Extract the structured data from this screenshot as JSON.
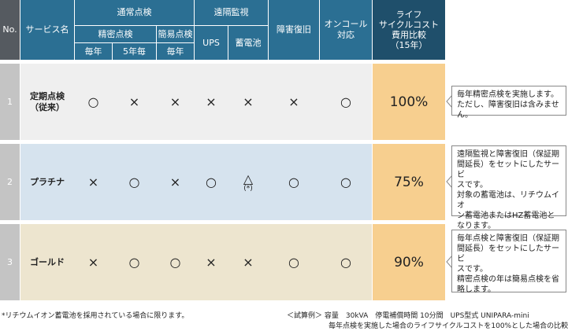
{
  "headers": {
    "no": "No.",
    "service": "サービス名",
    "regular": "通常点検",
    "detailed": "精密点検",
    "simple": "簡易点検",
    "remote": "遠隔監視",
    "recovery": "障害復旧",
    "oncall_1": "オンコール",
    "oncall_2": "対応",
    "cost_1": "ライフ",
    "cost_2": "サイクルコスト",
    "cost_3": "費用比較",
    "cost_4": "（15年）",
    "yearly_a": "毎年",
    "five_year": "5年毎",
    "yearly_b": "毎年",
    "ups": "UPS",
    "battery": "蓄電池"
  },
  "rows": [
    {
      "no": "1",
      "name_1": "定期点検",
      "name_2": "（従来）",
      "marks": [
        "○",
        "×",
        "×",
        "×",
        "×",
        "×",
        "○"
      ],
      "battery_note": "",
      "cost": "100%",
      "note": [
        "毎年精密点検を実施します。",
        "ただし、障害復旧は含みません。"
      ]
    },
    {
      "no": "2",
      "name_1": "プラチナ",
      "name_2": "",
      "marks": [
        "×",
        "○",
        "×",
        "○",
        "△",
        "○",
        "○"
      ],
      "battery_note": "(*)",
      "cost": "75%",
      "note": [
        "遠隔監視と障害復旧（保証期",
        "間延長）をセットにしたサービ",
        "スです。",
        "対象の蓄電池は、リチウムイオ",
        "ン蓄電池またはHZ蓄電池と",
        "なります。"
      ]
    },
    {
      "no": "3",
      "name_1": "ゴールド",
      "name_2": "",
      "marks": [
        "×",
        "○",
        "○",
        "×",
        "×",
        "○",
        "○"
      ],
      "battery_note": "",
      "cost": "90%",
      "note": [
        "毎年点検と障害復旧（保証期",
        "間延長）をセットにしたサービ",
        "スです。",
        "精密点検の年は簡易点検を省",
        "略します。"
      ]
    }
  ],
  "footnotes": {
    "left": "*リチウムイオン蓄電池を採用されている場合に限ります。",
    "right_1": "＜試算例＞ 容量　30kVA　停電補償時間 10分間　UPS型式 UNIPARA-mini",
    "right_2": "毎年点検を実施した場合のライフサイクルコストを100%とした場合の比較"
  },
  "colors": {
    "header": "#2b6f93",
    "header_dark": "#1f4f6b",
    "no_col": "#555a60",
    "row1_bg": "#efefef",
    "row2_bg": "#d6e3ee",
    "row3_bg": "#ede5cf",
    "cost_col": "#f7cf8f"
  }
}
